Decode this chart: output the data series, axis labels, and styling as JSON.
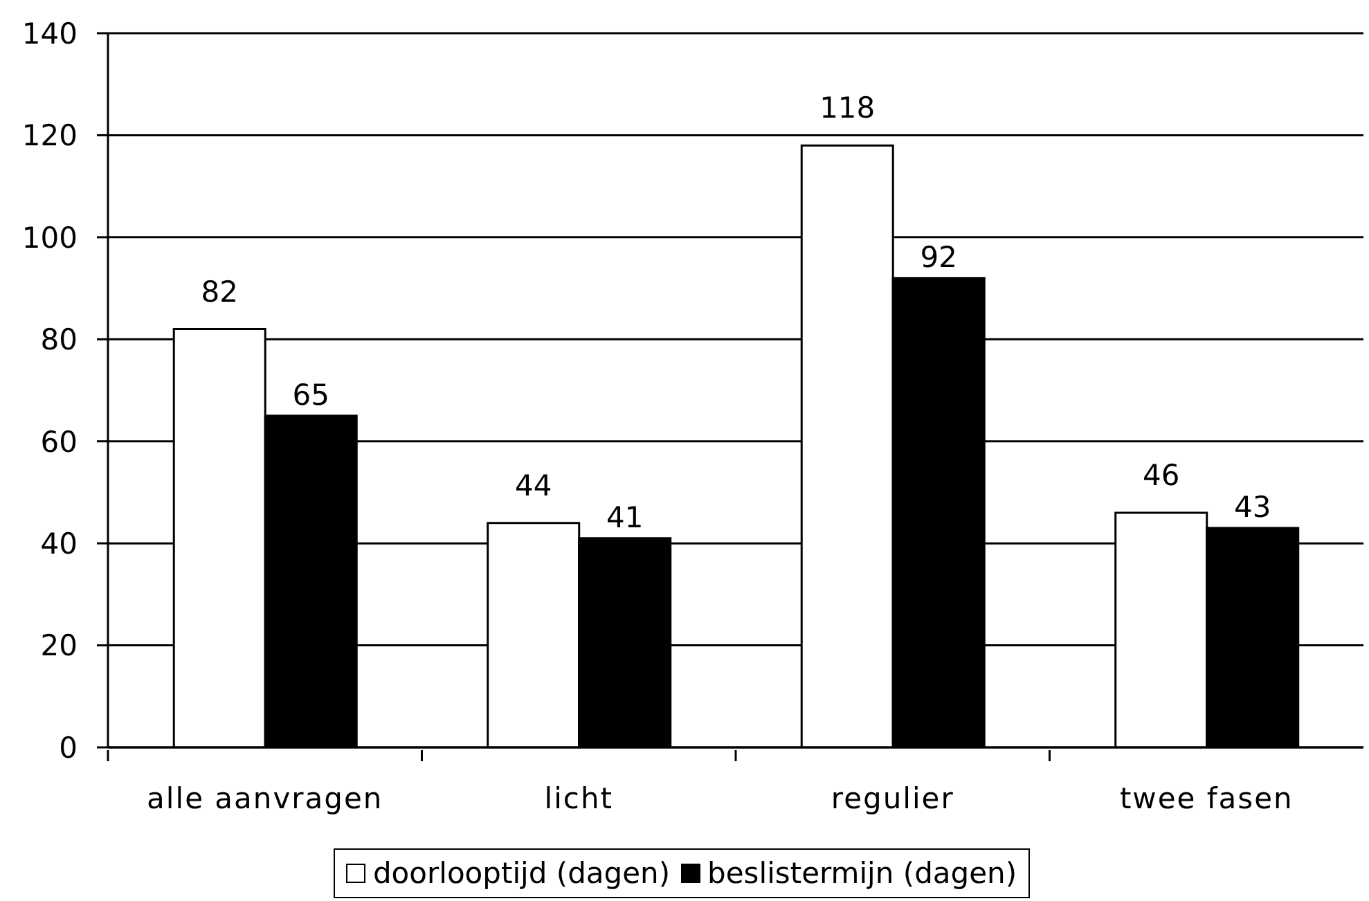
{
  "chart_data": {
    "type": "bar",
    "categories": [
      "alle aanvragen",
      "licht",
      "regulier",
      "twee fasen"
    ],
    "series": [
      {
        "name": "doorlooptijd (dagen)",
        "color": "#ffffff",
        "values": [
          82,
          44,
          118,
          46
        ]
      },
      {
        "name": "beslistermijn (dagen)",
        "color": "#000000",
        "values": [
          65,
          41,
          92,
          43
        ]
      }
    ],
    "ylim": [
      0,
      140
    ],
    "yticks": [
      0,
      20,
      40,
      60,
      80,
      100,
      120,
      140
    ],
    "grid": "y",
    "legend": "bottom",
    "data_labels": true
  }
}
